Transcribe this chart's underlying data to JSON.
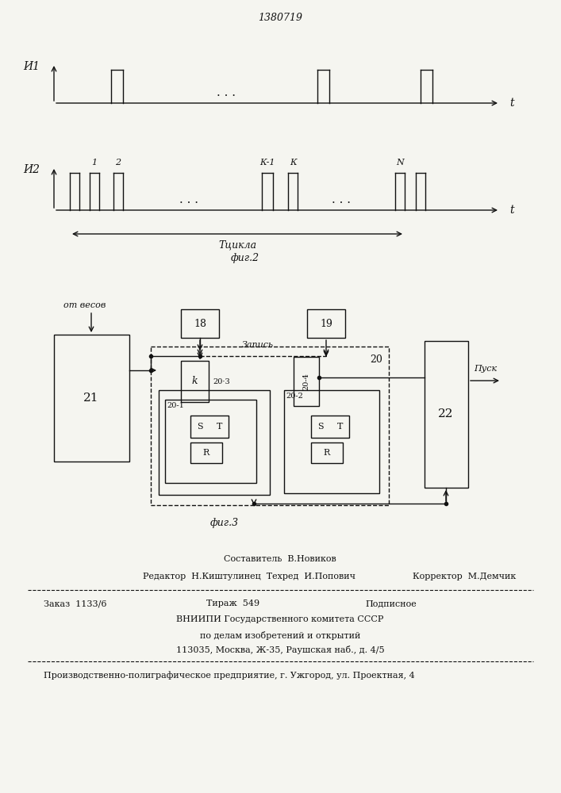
{
  "title": "1380719",
  "bg_color": "#f5f5f0",
  "fig_width": 7.07,
  "fig_height": 10.0,
  "dpi": 100,
  "footer": {
    "line1": "Составитель  В.Новиков",
    "line2_left": "Редактор  Н.Киштулинец  Техред  И.Попович",
    "line2_right": "Корректор  М.Демчик",
    "line3_a": "Заказ  1133/6",
    "line3_b": "Тираж  549",
    "line3_c": "Подписное",
    "line4": "ВНИИПИ Государственного комитета СССР",
    "line5": "по делам изобретений и открытий",
    "line6": "113035, Москва, Ж-35, Раушская наб., д. 4/5",
    "line7": "Производственно-полиграфическое предприятие, г. Ужгород, ул. Проектная, 4"
  }
}
